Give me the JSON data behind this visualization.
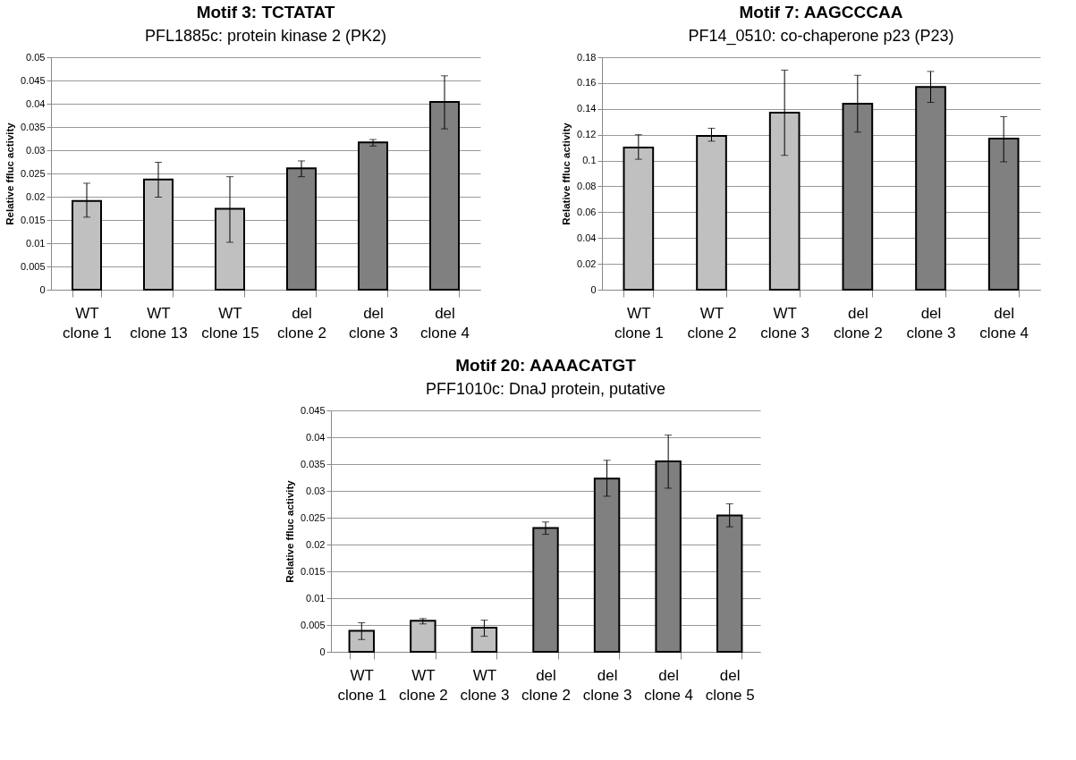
{
  "chart_data": [
    {
      "type": "bar",
      "title": "Motif 3: TCTATAT",
      "subtitle": "PFL1885c: protein kinase 2 (PK2)",
      "ylabel": "Relative ffluc activity",
      "categories": [
        "WT clone 1",
        "WT clone 13",
        "WT clone 15",
        "del clone 2",
        "del clone 3",
        "del clone 4"
      ],
      "values": [
        0.0191,
        0.0237,
        0.0174,
        0.0261,
        0.0317,
        0.0404
      ],
      "errors": [
        [
          0.0156,
          0.0229
        ],
        [
          0.0199,
          0.0274
        ],
        [
          0.0102,
          0.0243
        ],
        [
          0.0243,
          0.0277
        ],
        [
          0.0309,
          0.0323
        ],
        [
          0.0346,
          0.046
        ]
      ],
      "colors": [
        "#c0c0c0",
        "#c0c0c0",
        "#c0c0c0",
        "#808080",
        "#808080",
        "#808080"
      ],
      "ylim": [
        0,
        0.05
      ],
      "yticks": [
        0,
        0.005,
        0.01,
        0.015,
        0.02,
        0.025,
        0.03,
        0.035,
        0.04,
        0.045,
        0.05
      ],
      "grid": "y",
      "legend": false
    },
    {
      "type": "bar",
      "title": "Motif 7: AAGCCCAA",
      "subtitle": "PF14_0510: co-chaperone p23 (P23)",
      "ylabel": "Relative ffluc activity",
      "categories": [
        "WT clone 1",
        "WT clone 2",
        "WT clone 3",
        "del clone 2",
        "del clone 3",
        "del clone 4"
      ],
      "values": [
        0.11,
        0.119,
        0.137,
        0.144,
        0.157,
        0.117
      ],
      "errors": [
        [
          0.101,
          0.12
        ],
        [
          0.115,
          0.125
        ],
        [
          0.104,
          0.17
        ],
        [
          0.122,
          0.166
        ],
        [
          0.145,
          0.169
        ],
        [
          0.099,
          0.134
        ]
      ],
      "colors": [
        "#c0c0c0",
        "#c0c0c0",
        "#c0c0c0",
        "#808080",
        "#808080",
        "#808080"
      ],
      "ylim": [
        0,
        0.18
      ],
      "yticks": [
        0,
        0.02,
        0.04,
        0.06,
        0.08,
        0.1,
        0.12,
        0.14,
        0.16,
        0.18
      ],
      "grid": "y",
      "legend": false
    },
    {
      "type": "bar",
      "title": "Motif 20: AAAACATGT",
      "subtitle": "PFF1010c: DnaJ protein, putative",
      "ylabel": "Relative ffluc activity",
      "categories": [
        "WT clone 1",
        "WT clone 2",
        "WT clone 3",
        "del clone 2",
        "del clone 3",
        "del clone 4",
        "del clone 5"
      ],
      "values": [
        0.0039,
        0.0058,
        0.0045,
        0.0231,
        0.0323,
        0.0355,
        0.0254
      ],
      "errors": [
        [
          0.0023,
          0.0054
        ],
        [
          0.0052,
          0.0062
        ],
        [
          0.0029,
          0.0059
        ],
        [
          0.0219,
          0.0242
        ],
        [
          0.029,
          0.0357
        ],
        [
          0.0305,
          0.0404
        ],
        [
          0.0233,
          0.0276
        ]
      ],
      "colors": [
        "#c0c0c0",
        "#c0c0c0",
        "#c0c0c0",
        "#808080",
        "#808080",
        "#808080",
        "#808080"
      ],
      "ylim": [
        0,
        0.045
      ],
      "yticks": [
        0,
        0.005,
        0.01,
        0.015,
        0.02,
        0.025,
        0.03,
        0.035,
        0.04,
        0.045
      ],
      "grid": "y",
      "legend": false
    }
  ]
}
